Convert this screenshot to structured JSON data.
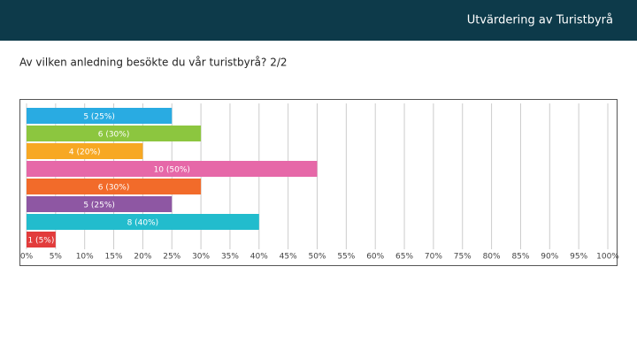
{
  "header": {
    "title": "Utvärdering av Turistbyrå"
  },
  "chart_data": {
    "type": "hbar",
    "title": "Av vilken anledning besökte du vår turistbyrå? 2/2",
    "categories": [
      null,
      null,
      null,
      null,
      null,
      null,
      null,
      null
    ],
    "values": [
      25,
      30,
      20,
      50,
      30,
      25,
      40,
      5
    ],
    "value_labels": [
      "5 (25%)",
      "6 (30%)",
      "4 (20%)",
      "10 (50%)",
      "6 (30%)",
      "5 (25%)",
      "8 (40%)",
      "1 (5%)"
    ],
    "colors": [
      "#29abe2",
      "#8cc63f",
      "#f7a823",
      "#e668a8",
      "#f26b2a",
      "#8e57a3",
      "#22bccd",
      "#e23b3b"
    ],
    "xlim": [
      0,
      100
    ],
    "xticks": [
      {
        "value": 0,
        "label": "0%"
      },
      {
        "value": 5,
        "label": "5%"
      },
      {
        "value": 10,
        "label": "10%"
      },
      {
        "value": 15,
        "label": "15%"
      },
      {
        "value": 20,
        "label": "20%"
      },
      {
        "value": 25,
        "label": "25%"
      },
      {
        "value": 30,
        "label": "30%"
      },
      {
        "value": 35,
        "label": "35%"
      },
      {
        "value": 40,
        "label": "40%"
      },
      {
        "value": 45,
        "label": "45%"
      },
      {
        "value": 50,
        "label": "50%"
      },
      {
        "value": 55,
        "label": "55%"
      },
      {
        "value": 60,
        "label": "60%"
      },
      {
        "value": 65,
        "label": "65%"
      },
      {
        "value": 70,
        "label": "70%"
      },
      {
        "value": 75,
        "label": "75%"
      },
      {
        "value": 80,
        "label": "80%"
      },
      {
        "value": 85,
        "label": "85%"
      },
      {
        "value": 90,
        "label": "90%"
      },
      {
        "value": 95,
        "label": "95%"
      },
      {
        "value": 100,
        "label": "100%"
      }
    ],
    "grid": true
  }
}
